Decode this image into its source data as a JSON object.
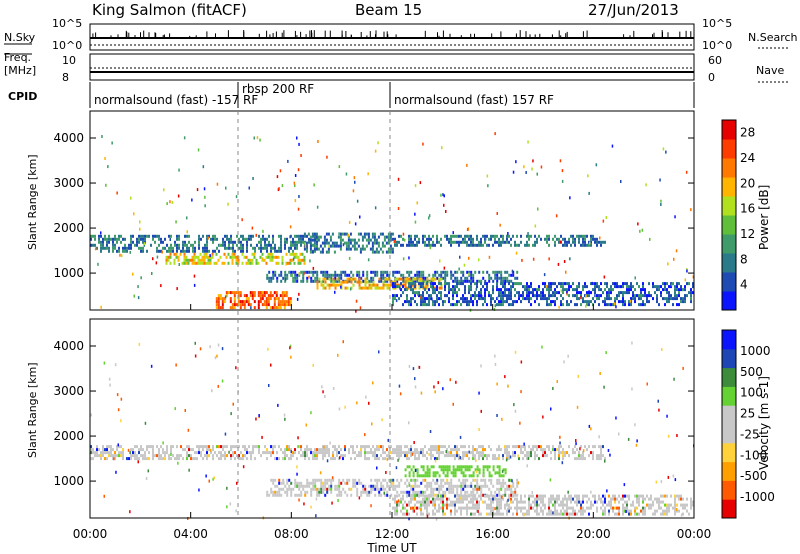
{
  "header": {
    "station": "King Salmon (fitACF)",
    "beam": "Beam 15",
    "date": "27/Jun/2013"
  },
  "summary_panels": {
    "nsky_label": "N.Sky",
    "nsky_top": "10^5",
    "nsky_bottom": "10^0",
    "nsearch_label": "N.Search",
    "nsearch_top": "10^5",
    "nsearch_bottom": "10^0",
    "freq_label_1": "Freq.",
    "freq_label_2": "[MHz]",
    "freq_top": "10",
    "freq_bottom": "8",
    "nave_label": "Nave",
    "nave_top": "60",
    "nave_bottom": "0",
    "cpid_label": "CPID",
    "cpid_segments": [
      {
        "text": "normalsound (fast) -157 RF"
      },
      {
        "text": "rbsp 200 RF"
      },
      {
        "text": "normalsound (fast) 157 RF"
      }
    ]
  },
  "colors": {
    "power_scale": [
      "#0a14ff",
      "#1e4ab4",
      "#2a7a8a",
      "#3f9b6a",
      "#5fbf3a",
      "#b0e01e",
      "#ffb400",
      "#ff7800",
      "#ff3c00",
      "#e60000"
    ],
    "velocity_scale": [
      "#e60000",
      "#ff5a00",
      "#ffa000",
      "#ffd23c",
      "#c8c8c8",
      "#c8c8c8",
      "#64d232",
      "#3c8c3c",
      "#1e46b4",
      "#0a14ff"
    ]
  },
  "chart_data": [
    {
      "type": "heatmap",
      "title": "",
      "xlabel": "",
      "ylabel": "Slant Range [km]",
      "x_ticks": [
        "00:00",
        "04:00",
        "08:00",
        "12:00",
        "16:00",
        "20:00",
        "00:00"
      ],
      "xlim_hours": [
        0,
        24
      ],
      "ylim_km": [
        180,
        4600
      ],
      "y_ticks": [
        1000,
        2000,
        3000,
        4000
      ],
      "colorbar_label": "Power [dB]",
      "colorbar_ticks": [
        4,
        8,
        12,
        16,
        20,
        24,
        28
      ],
      "colorbar_range": [
        0,
        30
      ],
      "bands": [
        {
          "t0": 0.0,
          "t1": 9.0,
          "r0": 1500,
          "r1": 1850,
          "value": 6
        },
        {
          "t0": 3.0,
          "t1": 8.5,
          "r0": 1250,
          "r1": 1450,
          "value": 16
        },
        {
          "t0": 8.5,
          "t1": 12.0,
          "r0": 1500,
          "r1": 1900,
          "value": 6
        },
        {
          "t0": 12.0,
          "t1": 20.5,
          "r0": 1600,
          "r1": 1850,
          "value": 6
        },
        {
          "t0": 7.0,
          "t1": 17.0,
          "r0": 850,
          "r1": 1050,
          "value": 5
        },
        {
          "t0": 9.0,
          "t1": 14.0,
          "r0": 700,
          "r1": 900,
          "value": 18
        },
        {
          "t0": 5.0,
          "t1": 8.0,
          "r0": 250,
          "r1": 600,
          "value": 22
        },
        {
          "t0": 12.0,
          "t1": 24.0,
          "r0": 300,
          "r1": 800,
          "value": 4
        }
      ]
    },
    {
      "type": "heatmap",
      "title": "",
      "xlabel": "Time UT",
      "ylabel": "Slant Range [km]",
      "x_ticks": [
        "00:00",
        "04:00",
        "08:00",
        "12:00",
        "16:00",
        "20:00",
        "00:00"
      ],
      "xlim_hours": [
        0,
        24
      ],
      "ylim_km": [
        180,
        4600
      ],
      "y_ticks": [
        1000,
        2000,
        3000,
        4000
      ],
      "colorbar_label": "Velocity [m s-1]",
      "colorbar_ticks": [
        "-1000",
        "-500",
        "-100",
        "-25",
        "25",
        "100",
        "500",
        "1000"
      ],
      "bands": [
        {
          "t0": 0.0,
          "t1": 20.5,
          "r0": 1500,
          "r1": 1800,
          "value": 0
        },
        {
          "t0": 12.5,
          "t1": 16.5,
          "r0": 1100,
          "r1": 1350,
          "value": 150
        },
        {
          "t0": 7.0,
          "t1": 17.0,
          "r0": 700,
          "r1": 1050,
          "value": 0
        },
        {
          "t0": 12.0,
          "t1": 24.0,
          "r0": 300,
          "r1": 700,
          "value": 0
        }
      ]
    }
  ]
}
